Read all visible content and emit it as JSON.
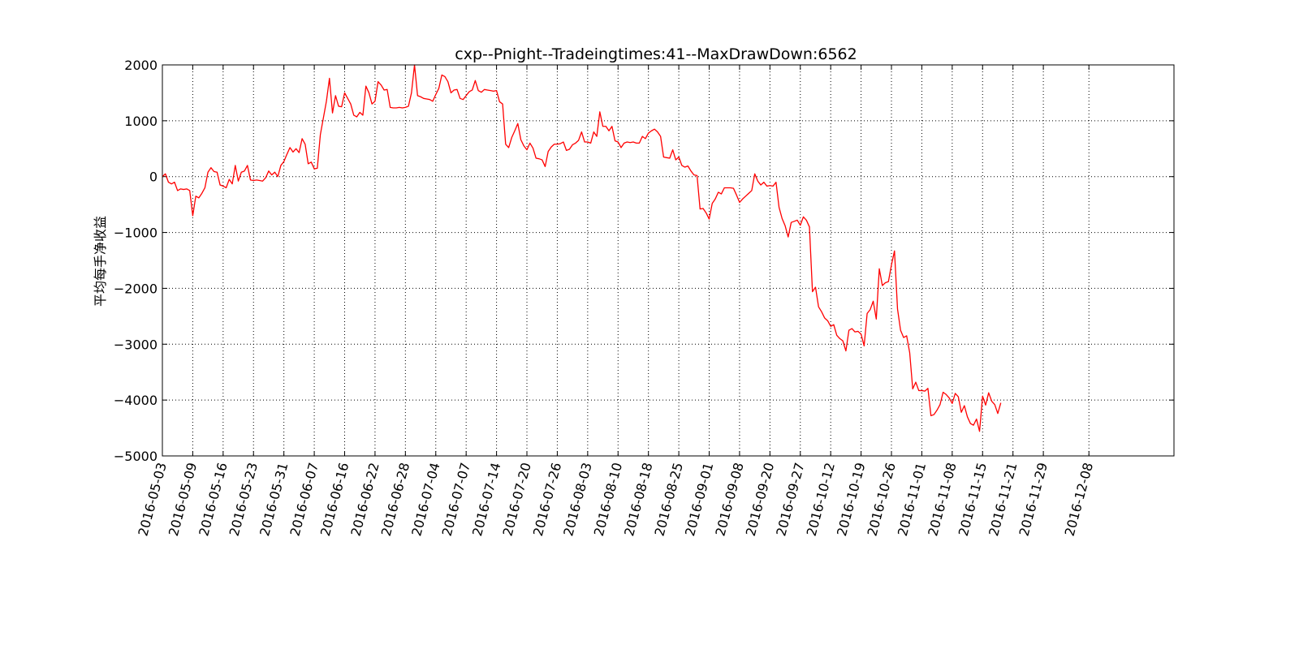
{
  "chart_data": {
    "type": "line",
    "title": "cxp--Pnight--Tradeingtimes:41--MaxDrawDown:6562",
    "xlabel": "",
    "ylabel": "平均每手净收益",
    "ylim": [
      -5000,
      2000
    ],
    "yticks": [
      2000,
      1000,
      0,
      -1000,
      -2000,
      -3000,
      -4000,
      -5000
    ],
    "ytick_labels": [
      "2000",
      "1000",
      "0",
      "−1000",
      "−2000",
      "−3000",
      "−4000",
      "−5000"
    ],
    "xlim_index": [
      0,
      333
    ],
    "xticks": [
      {
        "index": 0,
        "label": "2016-05-03"
      },
      {
        "index": 10,
        "label": "2016-05-09"
      },
      {
        "index": 20,
        "label": "2016-05-16"
      },
      {
        "index": 30,
        "label": "2016-05-23"
      },
      {
        "index": 40,
        "label": "2016-05-31"
      },
      {
        "index": 50,
        "label": "2016-06-07"
      },
      {
        "index": 60,
        "label": "2016-06-16"
      },
      {
        "index": 70,
        "label": "2016-06-22"
      },
      {
        "index": 80,
        "label": "2016-06-28"
      },
      {
        "index": 90,
        "label": "2016-07-04"
      },
      {
        "index": 100,
        "label": "2016-07-07"
      },
      {
        "index": 110,
        "label": "2016-07-14"
      },
      {
        "index": 120,
        "label": "2016-07-20"
      },
      {
        "index": 130,
        "label": "2016-07-26"
      },
      {
        "index": 140,
        "label": "2016-08-03"
      },
      {
        "index": 150,
        "label": "2016-08-10"
      },
      {
        "index": 160,
        "label": "2016-08-18"
      },
      {
        "index": 170,
        "label": "2016-08-25"
      },
      {
        "index": 180,
        "label": "2016-09-01"
      },
      {
        "index": 190,
        "label": "2016-09-08"
      },
      {
        "index": 200,
        "label": "2016-09-20"
      },
      {
        "index": 210,
        "label": "2016-09-27"
      },
      {
        "index": 220,
        "label": "2016-10-12"
      },
      {
        "index": 230,
        "label": "2016-10-19"
      },
      {
        "index": 240,
        "label": "2016-10-26"
      },
      {
        "index": 250,
        "label": "2016-11-01"
      },
      {
        "index": 260,
        "label": "2016-11-08"
      },
      {
        "index": 270,
        "label": "2016-11-15"
      },
      {
        "index": 280,
        "label": "2016-11-21"
      },
      {
        "index": 290,
        "label": "2016-11-29"
      },
      {
        "index": 305,
        "label": "2016-12-08"
      }
    ],
    "grid": true,
    "series": [
      {
        "color": "#ff0000",
        "points": [
          [
            0,
            0
          ],
          [
            1,
            50
          ],
          [
            2,
            -100
          ],
          [
            3,
            -130
          ],
          [
            4,
            -100
          ],
          [
            5,
            -250
          ],
          [
            6,
            -220
          ],
          [
            7,
            -230
          ],
          [
            8,
            -220
          ],
          [
            9,
            -250
          ],
          [
            10,
            -700
          ],
          [
            11,
            -350
          ],
          [
            12,
            -380
          ],
          [
            13,
            -300
          ],
          [
            14,
            -200
          ],
          [
            15,
            80
          ],
          [
            16,
            160
          ],
          [
            17,
            90
          ],
          [
            18,
            80
          ],
          [
            19,
            -150
          ],
          [
            20,
            -170
          ],
          [
            21,
            -200
          ],
          [
            22,
            -50
          ],
          [
            23,
            -130
          ],
          [
            24,
            200
          ],
          [
            25,
            -80
          ],
          [
            26,
            80
          ],
          [
            27,
            100
          ],
          [
            28,
            200
          ],
          [
            29,
            -60
          ],
          [
            30,
            -70
          ],
          [
            31,
            -60
          ],
          [
            32,
            -70
          ],
          [
            33,
            -80
          ],
          [
            34,
            -20
          ],
          [
            35,
            100
          ],
          [
            36,
            30
          ],
          [
            37,
            80
          ],
          [
            38,
            0
          ],
          [
            39,
            200
          ],
          [
            40,
            270
          ],
          [
            41,
            400
          ],
          [
            42,
            520
          ],
          [
            43,
            440
          ],
          [
            44,
            500
          ],
          [
            45,
            430
          ],
          [
            46,
            680
          ],
          [
            47,
            580
          ],
          [
            48,
            230
          ],
          [
            49,
            260
          ],
          [
            50,
            140
          ],
          [
            51,
            150
          ],
          [
            52,
            750
          ],
          [
            53,
            1050
          ],
          [
            54,
            1350
          ],
          [
            55,
            1760
          ],
          [
            56,
            1140
          ],
          [
            57,
            1450
          ],
          [
            58,
            1260
          ],
          [
            59,
            1250
          ],
          [
            60,
            1500
          ],
          [
            61,
            1400
          ],
          [
            62,
            1300
          ],
          [
            63,
            1100
          ],
          [
            64,
            1070
          ],
          [
            65,
            1150
          ],
          [
            66,
            1100
          ],
          [
            67,
            1620
          ],
          [
            68,
            1500
          ],
          [
            69,
            1300
          ],
          [
            70,
            1350
          ],
          [
            71,
            1700
          ],
          [
            72,
            1640
          ],
          [
            73,
            1550
          ],
          [
            74,
            1560
          ],
          [
            75,
            1240
          ],
          [
            76,
            1230
          ],
          [
            77,
            1230
          ],
          [
            78,
            1240
          ],
          [
            79,
            1230
          ],
          [
            80,
            1240
          ],
          [
            81,
            1260
          ],
          [
            82,
            1500
          ],
          [
            83,
            2000
          ],
          [
            84,
            1450
          ],
          [
            85,
            1430
          ],
          [
            86,
            1400
          ],
          [
            87,
            1390
          ],
          [
            88,
            1380
          ],
          [
            89,
            1350
          ],
          [
            90,
            1470
          ],
          [
            91,
            1580
          ],
          [
            92,
            1820
          ],
          [
            93,
            1790
          ],
          [
            94,
            1700
          ],
          [
            95,
            1500
          ],
          [
            96,
            1550
          ],
          [
            97,
            1560
          ],
          [
            98,
            1400
          ],
          [
            99,
            1380
          ],
          [
            100,
            1450
          ],
          [
            101,
            1520
          ],
          [
            102,
            1550
          ],
          [
            103,
            1720
          ],
          [
            104,
            1540
          ],
          [
            105,
            1510
          ],
          [
            106,
            1560
          ],
          [
            107,
            1550
          ],
          [
            108,
            1540
          ],
          [
            109,
            1530
          ],
          [
            110,
            1540
          ],
          [
            111,
            1340
          ],
          [
            112,
            1300
          ],
          [
            113,
            580
          ],
          [
            114,
            520
          ],
          [
            115,
            700
          ],
          [
            116,
            820
          ],
          [
            117,
            950
          ],
          [
            118,
            660
          ],
          [
            119,
            550
          ],
          [
            120,
            480
          ],
          [
            121,
            600
          ],
          [
            122,
            510
          ],
          [
            123,
            330
          ],
          [
            124,
            320
          ],
          [
            125,
            300
          ],
          [
            126,
            180
          ],
          [
            127,
            450
          ],
          [
            128,
            530
          ],
          [
            129,
            580
          ],
          [
            130,
            580
          ],
          [
            131,
            590
          ],
          [
            132,
            620
          ],
          [
            133,
            470
          ],
          [
            134,
            490
          ],
          [
            135,
            570
          ],
          [
            136,
            600
          ],
          [
            137,
            650
          ],
          [
            138,
            800
          ],
          [
            139,
            620
          ],
          [
            140,
            620
          ],
          [
            141,
            600
          ],
          [
            142,
            800
          ],
          [
            143,
            720
          ],
          [
            144,
            1160
          ],
          [
            145,
            900
          ],
          [
            146,
            900
          ],
          [
            147,
            820
          ],
          [
            148,
            900
          ],
          [
            149,
            640
          ],
          [
            150,
            620
          ],
          [
            151,
            520
          ],
          [
            152,
            600
          ],
          [
            153,
            620
          ],
          [
            154,
            610
          ],
          [
            155,
            620
          ],
          [
            156,
            600
          ],
          [
            157,
            600
          ],
          [
            158,
            720
          ],
          [
            159,
            680
          ],
          [
            160,
            780
          ],
          [
            161,
            820
          ],
          [
            162,
            850
          ],
          [
            163,
            800
          ],
          [
            164,
            720
          ],
          [
            165,
            350
          ],
          [
            166,
            340
          ],
          [
            167,
            330
          ],
          [
            168,
            480
          ],
          [
            169,
            300
          ],
          [
            170,
            350
          ],
          [
            171,
            200
          ],
          [
            172,
            170
          ],
          [
            173,
            190
          ],
          [
            174,
            100
          ],
          [
            175,
            30
          ],
          [
            176,
            20
          ],
          [
            177,
            -580
          ],
          [
            178,
            -570
          ],
          [
            179,
            -650
          ],
          [
            180,
            -760
          ],
          [
            181,
            -480
          ],
          [
            182,
            -400
          ],
          [
            183,
            -280
          ],
          [
            184,
            -310
          ],
          [
            185,
            -200
          ],
          [
            186,
            -200
          ],
          [
            187,
            -200
          ],
          [
            188,
            -210
          ],
          [
            189,
            -330
          ],
          [
            190,
            -460
          ],
          [
            191,
            -400
          ],
          [
            192,
            -350
          ],
          [
            193,
            -300
          ],
          [
            194,
            -250
          ],
          [
            195,
            50
          ],
          [
            196,
            -80
          ],
          [
            197,
            -150
          ],
          [
            198,
            -100
          ],
          [
            199,
            -170
          ],
          [
            200,
            -160
          ],
          [
            201,
            -170
          ],
          [
            202,
            -100
          ],
          [
            203,
            -550
          ],
          [
            204,
            -750
          ],
          [
            205,
            -880
          ],
          [
            206,
            -1080
          ],
          [
            207,
            -820
          ],
          [
            208,
            -800
          ],
          [
            209,
            -780
          ],
          [
            210,
            -870
          ],
          [
            211,
            -720
          ],
          [
            212,
            -780
          ],
          [
            213,
            -900
          ],
          [
            214,
            -2060
          ],
          [
            215,
            -1980
          ],
          [
            216,
            -2330
          ],
          [
            217,
            -2420
          ],
          [
            218,
            -2530
          ],
          [
            219,
            -2580
          ],
          [
            220,
            -2680
          ],
          [
            221,
            -2650
          ],
          [
            222,
            -2840
          ],
          [
            223,
            -2900
          ],
          [
            224,
            -2940
          ],
          [
            225,
            -3120
          ],
          [
            226,
            -2750
          ],
          [
            227,
            -2720
          ],
          [
            228,
            -2780
          ],
          [
            229,
            -2770
          ],
          [
            230,
            -2820
          ],
          [
            231,
            -3030
          ],
          [
            232,
            -2450
          ],
          [
            233,
            -2380
          ],
          [
            234,
            -2230
          ],
          [
            235,
            -2550
          ],
          [
            236,
            -1650
          ],
          [
            237,
            -1950
          ],
          [
            238,
            -1900
          ],
          [
            239,
            -1880
          ],
          [
            240,
            -1580
          ],
          [
            241,
            -1330
          ],
          [
            242,
            -2370
          ],
          [
            243,
            -2750
          ],
          [
            244,
            -2880
          ],
          [
            245,
            -2850
          ],
          [
            246,
            -3150
          ],
          [
            247,
            -3800
          ],
          [
            248,
            -3680
          ],
          [
            249,
            -3830
          ],
          [
            250,
            -3830
          ],
          [
            251,
            -3840
          ],
          [
            252,
            -3790
          ],
          [
            253,
            -4280
          ],
          [
            254,
            -4260
          ],
          [
            255,
            -4180
          ],
          [
            256,
            -4080
          ],
          [
            257,
            -3860
          ],
          [
            258,
            -3900
          ],
          [
            259,
            -3960
          ],
          [
            260,
            -4060
          ],
          [
            261,
            -3880
          ],
          [
            262,
            -3940
          ],
          [
            263,
            -4220
          ],
          [
            264,
            -4100
          ],
          [
            265,
            -4300
          ],
          [
            266,
            -4420
          ],
          [
            267,
            -4450
          ],
          [
            268,
            -4340
          ],
          [
            269,
            -4560
          ],
          [
            270,
            -3930
          ],
          [
            271,
            -4090
          ],
          [
            272,
            -3870
          ],
          [
            273,
            -4020
          ],
          [
            274,
            -4080
          ],
          [
            275,
            -4240
          ],
          [
            276,
            -4050
          ]
        ]
      }
    ]
  }
}
